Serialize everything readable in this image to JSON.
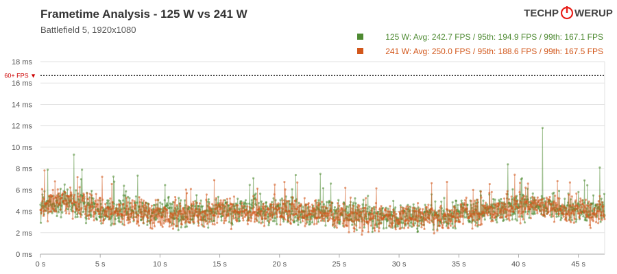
{
  "logo": {
    "left": "TECHP",
    "right": "WERUP"
  },
  "chart_data": {
    "type": "scatter",
    "title": "Frametime Analysis - 125 W vs 241 W",
    "subtitle": "Battlefield 5, 1920x1080",
    "xlabel": "",
    "ylabel": "",
    "xlim": [
      0,
      47.2
    ],
    "ylim": [
      0,
      18
    ],
    "x_ticks": [
      0,
      5,
      10,
      15,
      20,
      25,
      30,
      35,
      40,
      45
    ],
    "x_tick_labels": [
      "0 s",
      "5 s",
      "10 s",
      "15 s",
      "20 s",
      "25 s",
      "30 s",
      "35 s",
      "40 s",
      "45 s"
    ],
    "y_ticks": [
      0,
      2,
      4,
      6,
      8,
      10,
      12,
      14,
      16,
      18
    ],
    "y_tick_labels": [
      "0 ms",
      "2 ms",
      "4 ms",
      "6 ms",
      "8 ms",
      "10 ms",
      "12 ms",
      "14 ms",
      "16 ms",
      "18 ms"
    ],
    "grid": true,
    "legend_position": "top-right",
    "reference_line": {
      "value": 16.7,
      "label": "60+ FPS ▼",
      "color": "#cc0000"
    },
    "series": [
      {
        "name": "125 W",
        "color": "#4e8a32",
        "legend": "125 W: Avg: 242.7 FPS / 95th: 194.9 FPS / 99th: 167.1 FPS",
        "avg_ms": 4.12,
        "profile_ms": [
          [
            0,
            4.4
          ],
          [
            2,
            4.9
          ],
          [
            4,
            4.4
          ],
          [
            7,
            4.0
          ],
          [
            12,
            3.8
          ],
          [
            18,
            4.1
          ],
          [
            22,
            4.0
          ],
          [
            25,
            3.7
          ],
          [
            30,
            3.5
          ],
          [
            34,
            3.6
          ],
          [
            38,
            4.1
          ],
          [
            41,
            4.6
          ],
          [
            43,
            4.3
          ],
          [
            47.2,
            4.0
          ]
        ],
        "spikes": [
          [
            0.6,
            7.9
          ],
          [
            2.8,
            9.3
          ],
          [
            3.4,
            7.0
          ],
          [
            7.0,
            6.4
          ],
          [
            17.8,
            7.1
          ],
          [
            23.4,
            7.5
          ],
          [
            24.3,
            6.6
          ],
          [
            39.1,
            8.4
          ],
          [
            40.2,
            7.0
          ],
          [
            42.0,
            11.8
          ],
          [
            45.5,
            6.9
          ],
          [
            46.8,
            8.1
          ]
        ]
      },
      {
        "name": "241 W",
        "color": "#d2571b",
        "legend": "241 W: Avg: 250.0 FPS / 95th: 188.6 FPS / 99th: 167.5 FPS",
        "avg_ms": 4.0,
        "profile_ms": [
          [
            0,
            4.5
          ],
          [
            2,
            5.0
          ],
          [
            4,
            4.3
          ],
          [
            7,
            3.9
          ],
          [
            12,
            3.7
          ],
          [
            18,
            4.0
          ],
          [
            22,
            3.9
          ],
          [
            25,
            3.6
          ],
          [
            30,
            3.4
          ],
          [
            34,
            3.5
          ],
          [
            38,
            4.0
          ],
          [
            41,
            4.7
          ],
          [
            43,
            4.2
          ],
          [
            47.2,
            3.9
          ]
        ],
        "spikes": [
          [
            1.2,
            6.8
          ],
          [
            3.1,
            7.2
          ],
          [
            12.6,
            6.1
          ],
          [
            19.6,
            6.5
          ],
          [
            21.5,
            6.7
          ],
          [
            36.2,
            6.0
          ],
          [
            40.8,
            6.6
          ],
          [
            44.3,
            6.7
          ]
        ]
      }
    ]
  }
}
